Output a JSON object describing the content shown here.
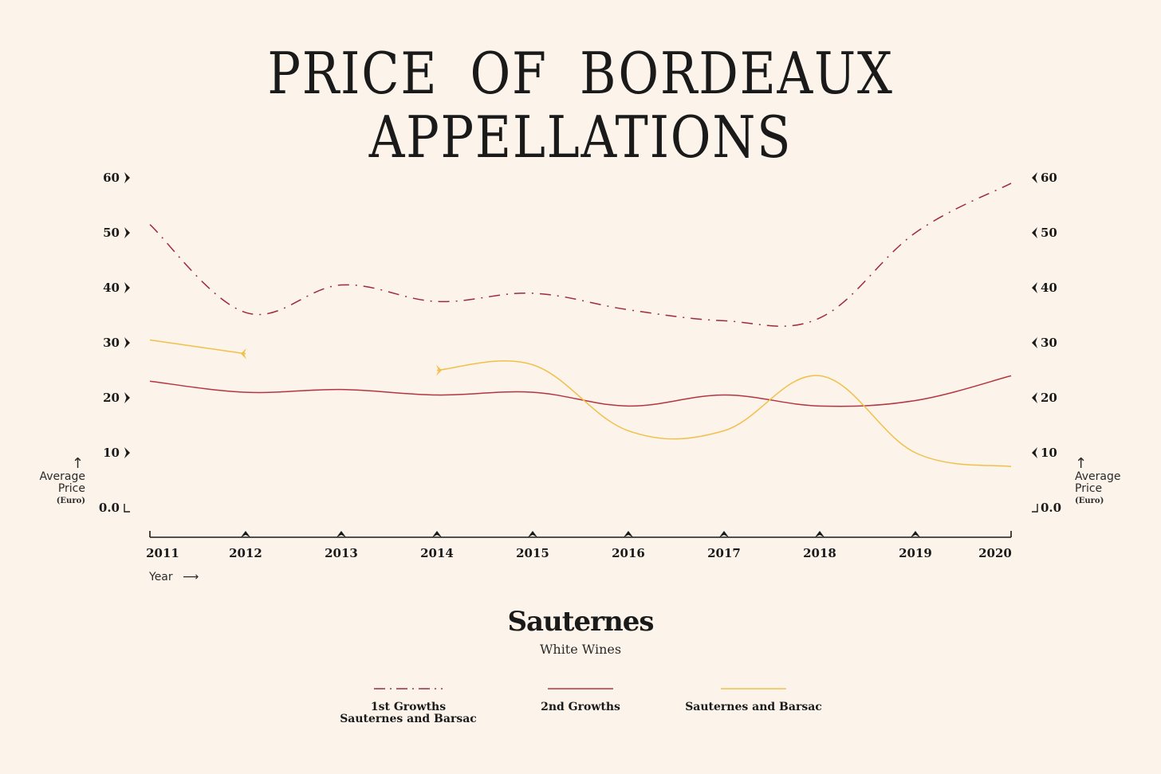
{
  "title": "PRICE OF BORDEAUX APPELLATIONS",
  "subtitle": "Sauternes",
  "caption": "White Wines",
  "y_axis": {
    "label_line1": "Average",
    "label_line2": "Price",
    "unit": "(Euro)",
    "arrow": "↑"
  },
  "x_axis": {
    "label": "Year",
    "arrow": "⟶"
  },
  "colors": {
    "background": "#fcf4ea",
    "first_growths": "#9e2a3b",
    "second_growths": "#b5343f",
    "sauternes_barsac": "#f0c04a",
    "axis": "#1a1a1a"
  },
  "chart_data": {
    "type": "line",
    "x": [
      "2011",
      "2012",
      "2013",
      "2014",
      "2015",
      "2016",
      "2017",
      "2018",
      "2019",
      "2020"
    ],
    "ylim": [
      0,
      60
    ],
    "yticks": [
      "0.0",
      "10",
      "20",
      "30",
      "40",
      "50",
      "60"
    ],
    "ytick_values": [
      0,
      10,
      20,
      30,
      40,
      50,
      60
    ],
    "xlabel": "Year",
    "ylabel": "Average Price (Euro)",
    "series": [
      {
        "name": "1st Growths Sauternes and Barsac",
        "style": "dash-dot",
        "values": [
          51.5,
          35.5,
          40.5,
          37.5,
          39,
          36,
          34,
          34.5,
          50,
          59
        ]
      },
      {
        "name": "2nd Growths",
        "style": "solid",
        "values": [
          23,
          21,
          21.5,
          20.5,
          21,
          18.5,
          20.5,
          18.5,
          19.5,
          24
        ]
      },
      {
        "name": "Sauternes and Barsac",
        "style": "solid",
        "values": [
          30.5,
          28,
          null,
          25,
          26,
          14,
          14,
          24,
          10,
          7.5
        ]
      }
    ],
    "legend": [
      {
        "line1": "1st Growths",
        "line2": "Sauternes and Barsac"
      },
      {
        "line1": "2nd Growths",
        "line2": ""
      },
      {
        "line1": "Sauternes and Barsac",
        "line2": ""
      }
    ],
    "legend_position": "bottom-center"
  }
}
